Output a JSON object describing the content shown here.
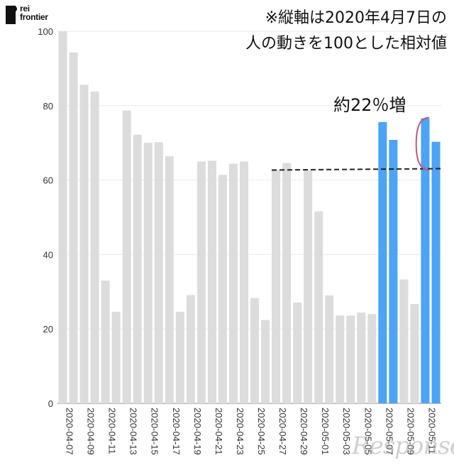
{
  "logo": {
    "line1": "rei",
    "line2": "frontier"
  },
  "note": {
    "line1": "※縦軸は2020年4月7日の",
    "line2": "人の動きを100とした相対値"
  },
  "annotation": "約22％増",
  "watermark": "Response.",
  "colors": {
    "gray_bar": "#dcdcdc",
    "blue_bar": "#4da3f5",
    "bracket": "#c2567a",
    "reference": "#222222"
  },
  "chart_data": {
    "type": "bar",
    "ylim": [
      0,
      100
    ],
    "yticks": [
      0,
      20,
      40,
      60,
      80,
      100
    ],
    "grid": true,
    "x": [
      "2020-04-07",
      "2020-04-08",
      "2020-04-09",
      "2020-04-10",
      "2020-04-11",
      "2020-04-12",
      "2020-04-13",
      "2020-04-14",
      "2020-04-15",
      "2020-04-16",
      "2020-04-17",
      "2020-04-18",
      "2020-04-19",
      "2020-04-20",
      "2020-04-21",
      "2020-04-22",
      "2020-04-23",
      "2020-04-24",
      "2020-04-25",
      "2020-04-26",
      "2020-04-27",
      "2020-04-28",
      "2020-04-29",
      "2020-04-30",
      "2020-05-01",
      "2020-05-02",
      "2020-05-03",
      "2020-05-04",
      "2020-05-05",
      "2020-05-06",
      "2020-05-07",
      "2020-05-08",
      "2020-05-09",
      "2020-05-10",
      "2020-05-11",
      "2020-05-12"
    ],
    "values": [
      100,
      94.3,
      85.6,
      83.8,
      33,
      24.6,
      78.7,
      72.2,
      70,
      70.2,
      66.4,
      24.6,
      29.1,
      65,
      65.2,
      61.4,
      64.4,
      65,
      28.3,
      22.4,
      62.7,
      64.6,
      27.1,
      62.6,
      51.6,
      29,
      23.6,
      23.6,
      24.4,
      24,
      75.6,
      70.8,
      33.3,
      26.7,
      76.6,
      70.3
    ],
    "highlight": [
      "2020-05-07",
      "2020-05-08",
      "2020-05-11",
      "2020-05-12"
    ],
    "tick_labels": [
      "2020-04-07",
      "2020-04-09",
      "2020-04-11",
      "2020-04-13",
      "2020-04-15",
      "2020-04-17",
      "2020-04-19",
      "2020-04-21",
      "2020-04-23",
      "2020-04-25",
      "2020-04-27",
      "2020-04-29",
      "2020-05-01",
      "2020-05-03",
      "2020-05-05",
      "2020-05-07",
      "2020-05-09",
      "2020-05-11"
    ],
    "reference_line": {
      "y": 62.7,
      "from": "2020-04-27",
      "to": "2020-05-12"
    },
    "bracket": {
      "from": 62.7,
      "to": 76.6,
      "at": "2020-05-10"
    }
  }
}
